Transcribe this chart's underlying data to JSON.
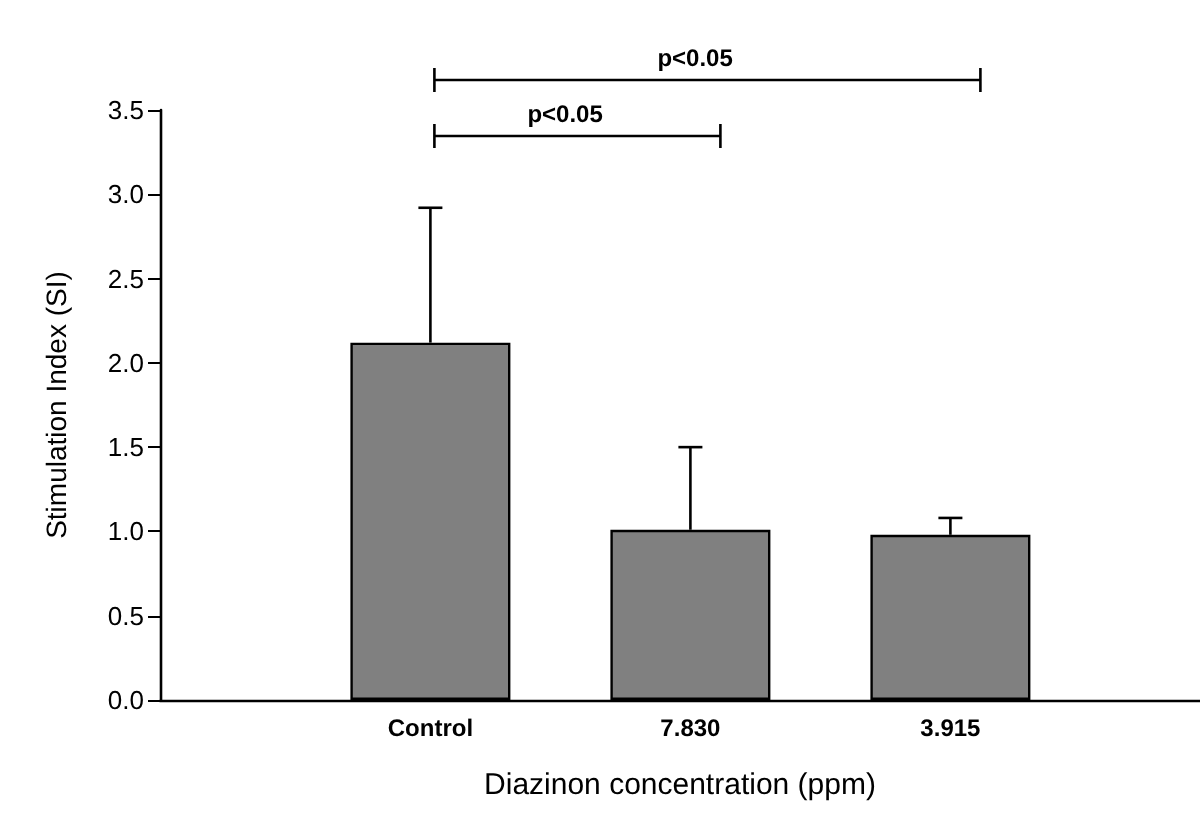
{
  "chart_data": {
    "type": "bar",
    "xlabel": "Diazinon concentration (ppm)",
    "ylabel": "Stimulation Index (SI)",
    "categories": [
      "Control",
      "7.830",
      "3.915"
    ],
    "values": [
      2.12,
      1.01,
      0.98
    ],
    "errors": [
      [
        2.12,
        2.92
      ],
      [
        1.01,
        1.5
      ],
      [
        0.98,
        1.08
      ]
    ],
    "color": "#808080",
    "ylim": [
      0,
      3.5
    ],
    "yticks": [
      {
        "value": 0,
        "label": "0.0"
      },
      {
        "value": 0.5,
        "label": "0.5"
      },
      {
        "value": 1,
        "label": "1.0"
      },
      {
        "value": 1.5,
        "label": "1.5"
      },
      {
        "value": 2,
        "label": "2.0"
      },
      {
        "value": 2.5,
        "label": "2.5"
      },
      {
        "value": 3,
        "label": "3.0"
      },
      {
        "value": 3.5,
        "label": "3.5"
      }
    ],
    "annotations": [
      "p<0.05",
      "p<0.05"
    ],
    "grid": false
  }
}
